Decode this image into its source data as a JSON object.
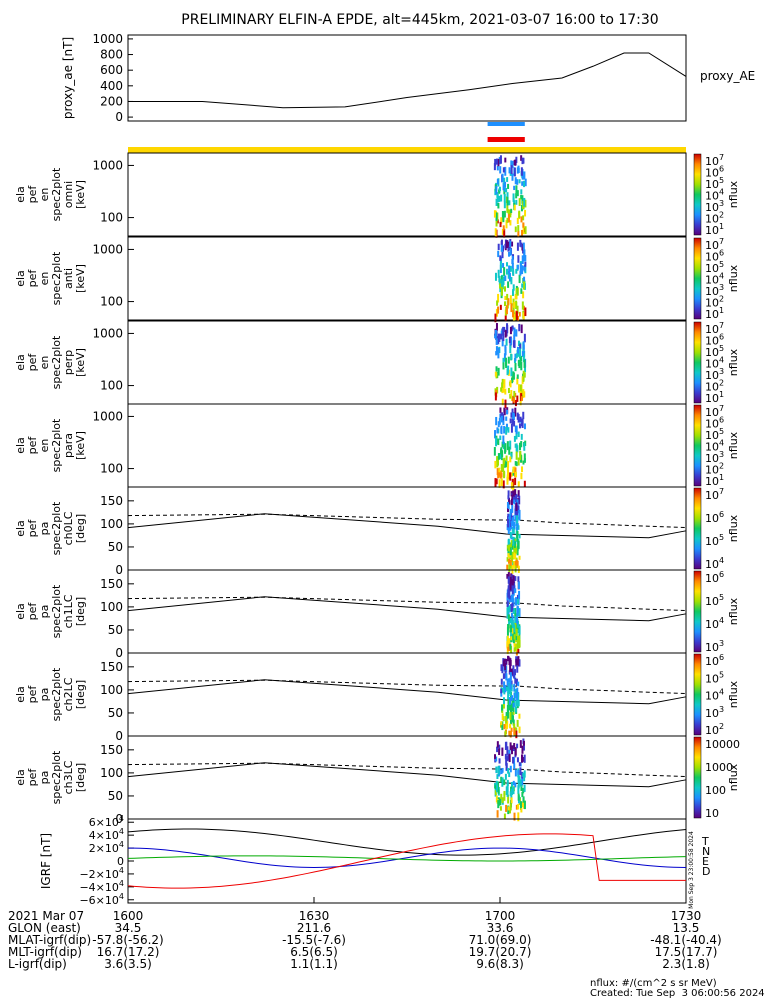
{
  "title": "PRELIMINARY ELFIN-A EPDE, alt=445km, 2021-03-07 16:00 to 17:30",
  "colors": {
    "bar_yellow": "#ffd700",
    "bar_blue": "#1e90ff",
    "bar_red": "#ee0000",
    "line": "#000000"
  },
  "chart_data": [
    {
      "type": "line",
      "id": "proxy_ae",
      "ylabel": "proxy_ae [nT]",
      "legend": "proxy_AE",
      "ylim": [
        -50,
        1050
      ],
      "yticks": [
        "1000",
        "800",
        "600",
        "400",
        "200",
        "0"
      ],
      "ytick_values": [
        1000,
        800,
        600,
        400,
        200,
        0
      ],
      "x_minutes": [
        0,
        12,
        25,
        35,
        45,
        55,
        62,
        70,
        75,
        80,
        84,
        90
      ],
      "values": [
        200,
        200,
        120,
        130,
        250,
        350,
        430,
        500,
        650,
        820,
        820,
        520
      ]
    },
    {
      "type": "spectrogram",
      "id": "en_omni",
      "ylabel": [
        "ela",
        "pef",
        "en",
        "spec2plot",
        "omni",
        "[keV]"
      ],
      "yticks": [
        "1000",
        "100"
      ],
      "scale": "log",
      "zlabel": "nflux",
      "zticks": [
        "10^7",
        "10^6",
        "10^5",
        "10^4",
        "10^3",
        "10^2",
        "10^1"
      ],
      "active_minutes": [
        59,
        64
      ]
    },
    {
      "type": "spectrogram",
      "id": "en_anti",
      "ylabel": [
        "ela",
        "pef",
        "en",
        "spec2plot",
        "anti",
        "[keV]"
      ],
      "yticks": [
        "1000",
        "100"
      ],
      "scale": "log",
      "zlabel": "nflux",
      "zticks": [
        "10^7",
        "10^6",
        "10^5",
        "10^4",
        "10^3",
        "10^2",
        "10^1"
      ],
      "active_minutes": [
        59,
        64
      ]
    },
    {
      "type": "spectrogram",
      "id": "en_perp",
      "ylabel": [
        "ela",
        "pef",
        "en",
        "spec2plot",
        "perp",
        "[keV]"
      ],
      "yticks": [
        "1000",
        "100"
      ],
      "scale": "log",
      "zlabel": "nflux",
      "zticks": [
        "10^7",
        "10^6",
        "10^5",
        "10^4",
        "10^3",
        "10^2",
        "10^1"
      ],
      "active_minutes": [
        59,
        64
      ]
    },
    {
      "type": "spectrogram",
      "id": "en_para",
      "ylabel": [
        "ela",
        "pef",
        "en",
        "spec2plot",
        "para",
        "[keV]"
      ],
      "yticks": [
        "1000",
        "100"
      ],
      "scale": "log",
      "zlabel": "nflux",
      "zticks": [
        "10^7",
        "10^6",
        "10^5",
        "10^4",
        "10^3",
        "10^2",
        "10^1"
      ],
      "active_minutes": [
        59,
        64
      ]
    },
    {
      "type": "spectrogram",
      "id": "pa_ch0",
      "ylabel": [
        "ela",
        "pef",
        "pa",
        "spec2plot",
        "ch0LC",
        "[deg]"
      ],
      "yticks": [
        "150",
        "100",
        "50",
        "0"
      ],
      "ylim": [
        0,
        180
      ],
      "zlabel": "nflux",
      "zticks": [
        "10^7",
        "10^6",
        "10^5",
        "10^4"
      ],
      "active_minutes": [
        61,
        63
      ]
    },
    {
      "type": "spectrogram",
      "id": "pa_ch1",
      "ylabel": [
        "ela",
        "pef",
        "pa",
        "spec2plot",
        "ch1LC",
        "[deg]"
      ],
      "yticks": [
        "150",
        "100",
        "50",
        "0"
      ],
      "ylim": [
        0,
        180
      ],
      "zlabel": "nflux",
      "zticks": [
        "10^6",
        "10^5",
        "10^4",
        "10^3"
      ],
      "active_minutes": [
        61,
        63
      ]
    },
    {
      "type": "spectrogram",
      "id": "pa_ch2",
      "ylabel": [
        "ela",
        "pef",
        "pa",
        "spec2plot",
        "ch2LC",
        "[deg]"
      ],
      "yticks": [
        "150",
        "100",
        "50",
        "0"
      ],
      "ylim": [
        0,
        180
      ],
      "zlabel": "nflux",
      "zticks": [
        "10^6",
        "10^5",
        "10^4",
        "10^3",
        "10^2"
      ],
      "active_minutes": [
        60,
        63
      ]
    },
    {
      "type": "spectrogram",
      "id": "pa_ch3",
      "ylabel": [
        "ela",
        "pef",
        "pa",
        "spec2plot",
        "ch3LC",
        "[deg]"
      ],
      "yticks": [
        "150",
        "100",
        "50",
        "0"
      ],
      "ylim": [
        0,
        180
      ],
      "zlabel": "nflux",
      "zticks": [
        "10000",
        "1000",
        "100",
        "10"
      ],
      "active_minutes": [
        59,
        64
      ]
    },
    {
      "type": "line",
      "id": "igrf",
      "ylabel": "IGRF [nT]",
      "yticks": [
        "6×10^4",
        "4×10^4",
        "2×10^4",
        "0",
        "−2×10^4",
        "−4×10^4",
        "−6×10^4"
      ],
      "ytick_values": [
        60000,
        40000,
        20000,
        0,
        -20000,
        -40000,
        -60000
      ],
      "ylim": [
        -65000,
        65000
      ],
      "legend": [
        "T",
        "N",
        "E",
        "D"
      ],
      "legend_colors": [
        "#000000",
        "#0000cc",
        "#00aa00",
        "#ee0000"
      ]
    }
  ],
  "side_text": "Mon Sep 3 23:00:58 2024",
  "xaxis": {
    "ticks": [
      "1600",
      "1630",
      "1700",
      "1730"
    ]
  },
  "footer": {
    "rows": [
      {
        "label": "2021 Mar 07",
        "vals": [
          "1600",
          "1630",
          "1700",
          "1730"
        ]
      },
      {
        "label": "GLON (east)",
        "vals": [
          "34.5",
          "211.6",
          "33.6",
          "13.5"
        ]
      },
      {
        "label": "MLAT-igrf(dip)",
        "vals": [
          "-57.8(-56.2)",
          "-15.5(-7.6)",
          "71.0(69.0)",
          "-48.1(-40.4)"
        ]
      },
      {
        "label": "MLT-igrf(dip)",
        "vals": [
          "16.7(17.2)",
          "6.5(6.5)",
          "19.7(20.7)",
          "17.5(17.7)"
        ]
      },
      {
        "label": "L-igrf(dip)",
        "vals": [
          "3.6(3.5)",
          "1.1(1.1)",
          "9.6(8.3)",
          "2.3(1.8)"
        ]
      }
    ],
    "note1": "nflux: #/(cm^2 s sr MeV)",
    "note2": "Created: Tue Sep  3 06:00:56 2024"
  }
}
